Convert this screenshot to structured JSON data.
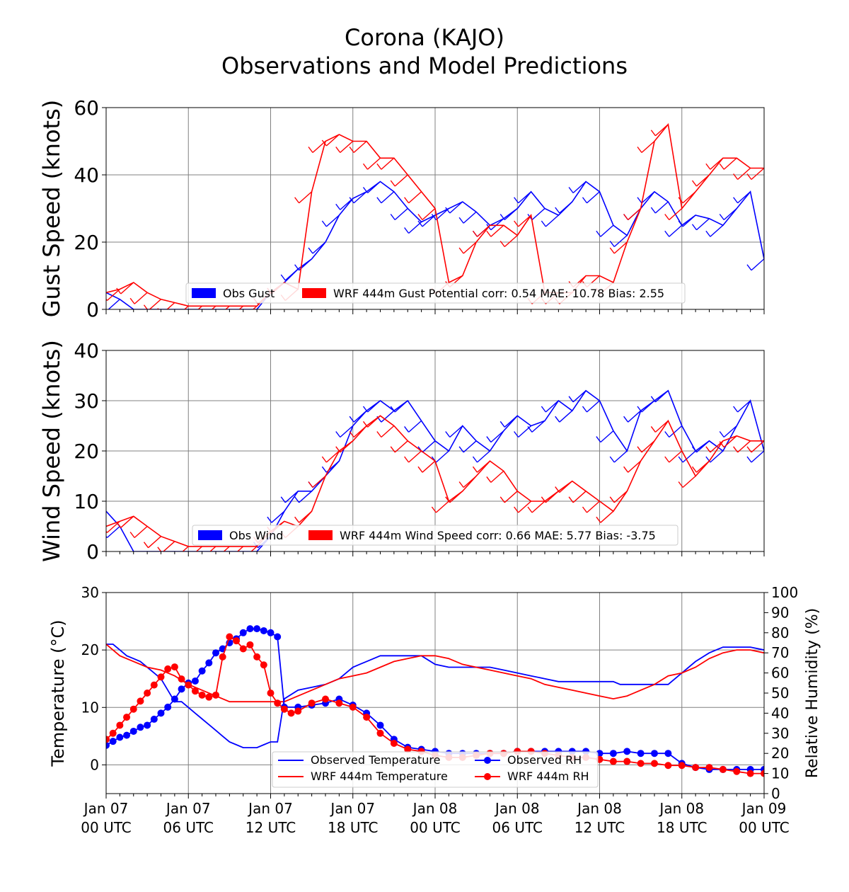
{
  "figure": {
    "title_line1": "Corona (KAJO)",
    "title_line2": "Observations and Model Predictions"
  },
  "colors": {
    "obs": "#0000ff",
    "model": "#ff0000",
    "grid": "#808080",
    "axis": "#000000"
  },
  "time_ticks": [
    {
      "t": 0,
      "line1": "Jan 07",
      "line2": "00 UTC"
    },
    {
      "t": 6,
      "line1": "Jan 07",
      "line2": "06 UTC"
    },
    {
      "t": 12,
      "line1": "Jan 07",
      "line2": "12 UTC"
    },
    {
      "t": 18,
      "line1": "Jan 07",
      "line2": "18 UTC"
    },
    {
      "t": 24,
      "line1": "Jan 08",
      "line2": "00 UTC"
    },
    {
      "t": 30,
      "line1": "Jan 08",
      "line2": "06 UTC"
    },
    {
      "t": 36,
      "line1": "Jan 08",
      "line2": "12 UTC"
    },
    {
      "t": 42,
      "line1": "Jan 08",
      "line2": "18 UTC"
    },
    {
      "t": 48,
      "line1": "Jan 09",
      "line2": "00 UTC"
    }
  ],
  "chart_data": [
    {
      "type": "line",
      "ylabel": "Gust Speed (knots)",
      "ylim": [
        0,
        60
      ],
      "yticks": [
        "0",
        "20",
        "40",
        "60"
      ],
      "grid": true,
      "legend_position": "bottom-center",
      "legend": [
        {
          "label": "Obs Gust",
          "color": "#0000ff"
        },
        {
          "label": "WRF 444m Gust Potential corr: 0.54 MAE: 10.78 Bias: 2.55",
          "color": "#ff0000"
        }
      ],
      "series": [
        {
          "name": "Obs Gust",
          "color": "#0000ff",
          "t": [
            0,
            1,
            2,
            3,
            4,
            5,
            6,
            7,
            8,
            9,
            10,
            11,
            12,
            13,
            14,
            15,
            16,
            17,
            18,
            19,
            20,
            21,
            22,
            23,
            24,
            25,
            26,
            27,
            28,
            29,
            30,
            31,
            32,
            33,
            34,
            35,
            36,
            37,
            38,
            39,
            40,
            41,
            42,
            43,
            44,
            45,
            46,
            47,
            48
          ],
          "values": [
            5,
            3,
            0,
            0,
            0,
            0,
            0,
            0,
            0,
            0,
            0,
            0,
            5,
            8,
            12,
            15,
            20,
            28,
            33,
            35,
            38,
            35,
            30,
            26,
            28,
            30,
            32,
            29,
            25,
            27,
            30,
            35,
            30,
            28,
            32,
            38,
            35,
            25,
            22,
            30,
            35,
            32,
            25,
            28,
            27,
            25,
            30,
            35,
            15
          ]
        },
        {
          "name": "WRF 444m Gust Potential",
          "color": "#ff0000",
          "t": [
            0,
            1,
            2,
            3,
            4,
            5,
            6,
            7,
            8,
            9,
            10,
            11,
            12,
            13,
            14,
            15,
            16,
            17,
            18,
            19,
            20,
            21,
            22,
            23,
            24,
            25,
            26,
            27,
            28,
            29,
            30,
            31,
            32,
            33,
            34,
            35,
            36,
            37,
            38,
            39,
            40,
            41,
            42,
            43,
            44,
            45,
            46,
            47,
            48
          ],
          "values": [
            5,
            6,
            8,
            5,
            3,
            2,
            1,
            1,
            1,
            1,
            1,
            1,
            5,
            8,
            6,
            35,
            50,
            52,
            50,
            50,
            45,
            45,
            40,
            35,
            30,
            8,
            10,
            20,
            25,
            25,
            22,
            28,
            5,
            5,
            5,
            10,
            10,
            8,
            20,
            30,
            50,
            55,
            30,
            35,
            40,
            45,
            45,
            42,
            42
          ]
        }
      ]
    },
    {
      "type": "line",
      "ylabel": "Wind Speed (knots)",
      "ylim": [
        0,
        40
      ],
      "yticks": [
        "0",
        "10",
        "20",
        "30",
        "40"
      ],
      "grid": true,
      "legend_position": "bottom-center",
      "legend": [
        {
          "label": "Obs Wind",
          "color": "#0000ff"
        },
        {
          "label": "WRF 444m Wind Speed corr: 0.66 MAE: 5.77 Bias: -3.75",
          "color": "#ff0000"
        }
      ],
      "series": [
        {
          "name": "Obs Wind",
          "color": "#0000ff",
          "t": [
            0,
            1,
            2,
            3,
            4,
            5,
            6,
            7,
            8,
            9,
            10,
            11,
            12,
            13,
            14,
            15,
            16,
            17,
            18,
            19,
            20,
            21,
            22,
            23,
            24,
            25,
            26,
            27,
            28,
            29,
            30,
            31,
            32,
            33,
            34,
            35,
            36,
            37,
            38,
            39,
            40,
            41,
            42,
            43,
            44,
            45,
            46,
            47,
            48
          ],
          "values": [
            8,
            5,
            0,
            0,
            0,
            0,
            0,
            0,
            0,
            0,
            0,
            0,
            3,
            8,
            12,
            12,
            15,
            18,
            25,
            28,
            30,
            28,
            30,
            26,
            22,
            20,
            25,
            22,
            20,
            24,
            27,
            25,
            26,
            30,
            28,
            32,
            30,
            24,
            20,
            28,
            30,
            32,
            25,
            20,
            22,
            20,
            25,
            30,
            20
          ]
        },
        {
          "name": "WRF 444m Wind Speed",
          "color": "#ff0000",
          "t": [
            0,
            1,
            2,
            3,
            4,
            5,
            6,
            7,
            8,
            9,
            10,
            11,
            12,
            13,
            14,
            15,
            16,
            17,
            18,
            19,
            20,
            21,
            22,
            23,
            24,
            25,
            26,
            27,
            28,
            29,
            30,
            31,
            32,
            33,
            34,
            35,
            36,
            37,
            38,
            39,
            40,
            41,
            42,
            43,
            44,
            45,
            46,
            47,
            48
          ],
          "values": [
            5,
            6,
            7,
            5,
            3,
            2,
            1,
            1,
            1,
            1,
            1,
            1,
            4,
            6,
            5,
            8,
            15,
            20,
            22,
            25,
            27,
            25,
            22,
            20,
            18,
            10,
            12,
            15,
            18,
            16,
            12,
            10,
            10,
            12,
            14,
            12,
            10,
            8,
            12,
            18,
            22,
            26,
            20,
            15,
            18,
            22,
            23,
            22,
            22
          ]
        }
      ]
    },
    {
      "type": "line",
      "ylabel": "Temperature (°C)",
      "ylabel_right": "Relative Humidity (%)",
      "ylim": [
        -5,
        30
      ],
      "yticks": [
        "0",
        "10",
        "20",
        "30"
      ],
      "ylim_right": [
        0,
        100
      ],
      "yticks_right": [
        "0",
        "10",
        "20",
        "30",
        "40",
        "50",
        "60",
        "70",
        "80",
        "90",
        "100"
      ],
      "grid": true,
      "legend_position": "bottom-center",
      "legend": [
        {
          "label": "Observed Temperature",
          "color": "#0000ff",
          "marker": false
        },
        {
          "label": "Observed RH",
          "color": "#0000ff",
          "marker": true
        },
        {
          "label": "WRF 444m Temperature",
          "color": "#ff0000",
          "marker": false
        },
        {
          "label": "WRF 444m RH",
          "color": "#ff0000",
          "marker": true
        }
      ],
      "series": [
        {
          "name": "Observed Temperature",
          "axis": "left",
          "color": "#0000ff",
          "marker": false,
          "t": [
            0,
            0.5,
            1,
            1.5,
            2,
            2.5,
            3,
            3.5,
            4,
            4.5,
            5,
            5.5,
            6,
            6.5,
            7,
            7.5,
            8,
            8.5,
            9,
            9.5,
            10,
            10.5,
            11,
            11.5,
            12,
            12.5,
            13,
            14,
            15,
            16,
            17,
            18,
            18.5,
            19,
            20,
            21,
            22,
            23,
            24,
            25,
            26,
            27,
            28,
            29,
            30,
            31,
            32,
            33,
            34,
            35,
            36,
            37,
            37.5,
            38,
            39,
            40,
            41,
            42,
            43,
            44,
            45,
            46,
            47,
            48
          ],
          "values": [
            21,
            21,
            20,
            19,
            18.5,
            18,
            17,
            16,
            15,
            13,
            11,
            11,
            10,
            9,
            8,
            7,
            6,
            5,
            4,
            3.5,
            3,
            3,
            3,
            3.5,
            4,
            4,
            11.5,
            13,
            13.5,
            14,
            15,
            17,
            17.5,
            18,
            19,
            19,
            19,
            19,
            17.5,
            17,
            17,
            17,
            17,
            16.5,
            16,
            15.5,
            15,
            14.5,
            14.5,
            14.5,
            14.5,
            14.5,
            14,
            14,
            14,
            14,
            14,
            16,
            18,
            19.5,
            20.5,
            20.5,
            20.5,
            20
          ]
        },
        {
          "name": "WRF 444m Temperature",
          "axis": "left",
          "color": "#ff0000",
          "marker": false,
          "t": [
            0,
            1,
            2,
            3,
            4,
            5,
            6,
            7,
            8,
            9,
            10,
            11,
            12,
            13,
            14,
            15,
            16,
            17,
            18,
            19,
            20,
            21,
            22,
            23,
            24,
            25,
            26,
            27,
            28,
            29,
            30,
            31,
            32,
            33,
            34,
            35,
            36,
            37,
            38,
            39,
            40,
            41,
            42,
            43,
            44,
            45,
            46,
            47,
            48
          ],
          "values": [
            21,
            19,
            18,
            17,
            16.5,
            15.5,
            14,
            13,
            12,
            11,
            11,
            11,
            11,
            11,
            12,
            13,
            14,
            15,
            15.5,
            16,
            17,
            18,
            18.5,
            19,
            19,
            18.5,
            17.5,
            17,
            16.5,
            16,
            15.5,
            15,
            14,
            13.5,
            13,
            12.5,
            12,
            11.5,
            12,
            13,
            14,
            15.5,
            16,
            17,
            18.5,
            19.5,
            20,
            20,
            19.5
          ]
        },
        {
          "name": "Observed RH",
          "axis": "right",
          "color": "#0000ff",
          "marker": true,
          "t": [
            0,
            0.5,
            1,
            1.5,
            2,
            2.5,
            3,
            3.5,
            4,
            4.5,
            5,
            5.5,
            6,
            6.5,
            7,
            7.5,
            8,
            8.5,
            9,
            9.5,
            10,
            10.5,
            11,
            11.5,
            12,
            12.5,
            13,
            14,
            15,
            16,
            17,
            18,
            19,
            20,
            21,
            22,
            23,
            24,
            25,
            26,
            27,
            28,
            29,
            30,
            31,
            32,
            33,
            34,
            35,
            36,
            37,
            38,
            39,
            40,
            41,
            42,
            43,
            44,
            45,
            46,
            47,
            48
          ],
          "values": [
            24,
            26,
            28,
            29,
            31,
            33,
            34,
            37,
            40,
            43,
            47,
            52,
            55,
            56,
            61,
            65,
            70,
            72,
            75,
            77,
            80,
            82,
            82,
            81,
            80,
            78,
            43,
            43,
            44,
            45,
            47,
            44,
            40,
            34,
            27,
            23,
            22,
            21,
            20,
            20,
            20,
            20,
            20,
            21,
            21,
            21,
            21,
            21,
            21,
            20,
            20,
            21,
            20,
            20,
            20,
            15,
            13,
            12,
            12,
            12,
            12,
            12
          ]
        },
        {
          "name": "WRF 444m RH",
          "axis": "right",
          "color": "#ff0000",
          "marker": true,
          "t": [
            0,
            0.5,
            1,
            1.5,
            2,
            2.5,
            3,
            3.5,
            4,
            4.5,
            5,
            5.5,
            6,
            6.5,
            7,
            7.5,
            8,
            8.5,
            9,
            9.5,
            10,
            10.5,
            11,
            11.5,
            12,
            12.5,
            13,
            13.5,
            14,
            15,
            16,
            17,
            18,
            19,
            20,
            21,
            22,
            23,
            24,
            25,
            26,
            27,
            28,
            29,
            30,
            31,
            32,
            33,
            34,
            35,
            36,
            37,
            38,
            39,
            40,
            41,
            42,
            43,
            44,
            45,
            46,
            47,
            48
          ],
          "values": [
            27,
            30,
            34,
            38,
            42,
            46,
            50,
            54,
            58,
            62,
            63,
            57,
            54,
            51,
            49,
            48,
            49,
            68,
            78,
            76,
            72,
            74,
            68,
            64,
            50,
            45,
            42,
            40,
            41,
            45,
            47,
            45,
            43,
            38,
            30,
            25,
            22,
            21,
            19,
            18,
            18,
            19,
            20,
            20,
            21,
            21,
            20,
            19,
            18,
            18,
            17,
            16,
            16,
            15,
            15,
            14,
            14,
            13,
            13,
            12,
            11,
            10,
            10
          ]
        }
      ]
    }
  ]
}
